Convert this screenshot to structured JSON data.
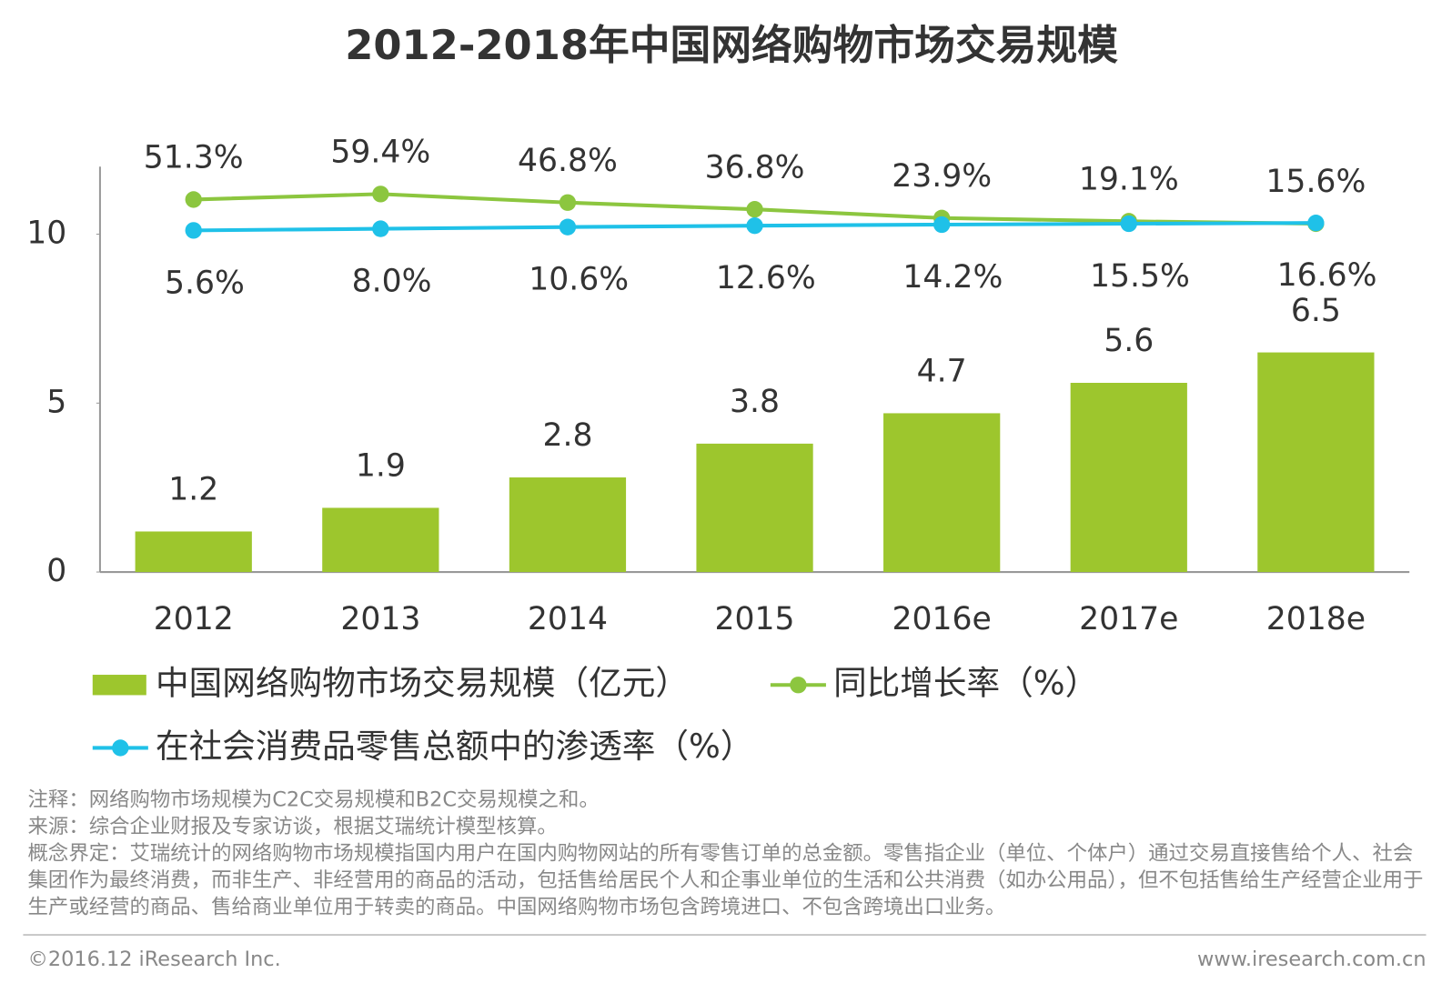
{
  "chart_data": {
    "type": "bar",
    "title": "2012-2018年中国网络购物市场交易规模",
    "categories": [
      "2012",
      "2013",
      "2014",
      "2015",
      "2016e",
      "2017e",
      "2018e"
    ],
    "ylim": [
      0,
      12
    ],
    "yticks": [
      0,
      5,
      10
    ],
    "y2lim": [
      -500,
      100
    ],
    "legend": "bottom",
    "series": [
      {
        "name": "中国网络购物市场交易规模（亿元）",
        "type": "bar",
        "color": "#9dc62d",
        "values": [
          1.2,
          1.9,
          2.8,
          3.8,
          4.7,
          5.6,
          6.5
        ]
      },
      {
        "name": "同比增长率（%）",
        "type": "line",
        "axis": "y2",
        "color": "#8cc63f",
        "values": [
          51.3,
          59.4,
          46.8,
          36.8,
          23.9,
          19.1,
          15.6
        ],
        "value_labels": [
          "51.3%",
          "59.4%",
          "46.8%",
          "36.8%",
          "23.9%",
          "19.1%",
          "15.6%"
        ]
      },
      {
        "name": "在社会消费品零售总额中的渗透率（%）",
        "type": "line",
        "axis": "y2",
        "color": "#1fc1e8",
        "values": [
          5.6,
          8.0,
          10.6,
          12.6,
          14.2,
          15.5,
          16.6
        ],
        "value_labels": [
          "5.6%",
          "8.0%",
          "10.6%",
          "12.6%",
          "14.2%",
          "15.5%",
          "16.6%"
        ]
      }
    ]
  },
  "notes": [
    "注释：网络购物市场规模为C2C交易规模和B2C交易规模之和。",
    "来源：综合企业财报及专家访谈，根据艾瑞统计模型核算。",
    "概念界定：艾瑞统计的网络购物市场规模指国内用户在国内购物网站的所有零售订单的总金额。零售指企业（单位、个体户）通过交易直接售给个人、社会集团作为最终消费，而非生产、非经营用的商品的活动，包括售给居民个人和企事业单位的生活和公共消费（如办公用品），但不包括售给生产经营企业用于生产或经营的商品、售给商业单位用于转卖的商品。中国网络购物市场包含跨境进口、不包含跨境出口业务。"
  ],
  "footer": {
    "copyright": "©2016.12 iResearch Inc.",
    "url": "www.iresearch.com.cn"
  }
}
